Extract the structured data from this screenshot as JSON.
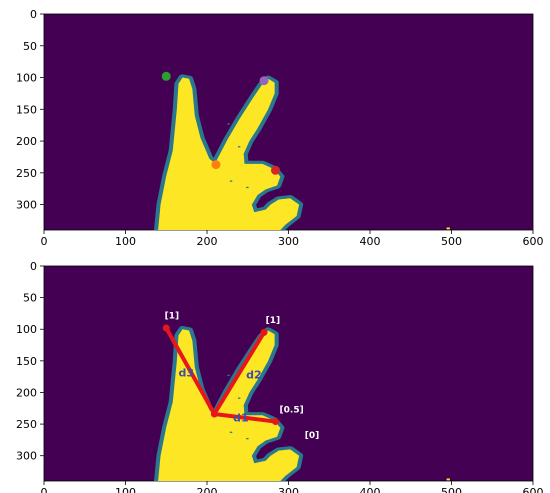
{
  "chart_data": [
    {
      "type": "heatmap",
      "colors": {
        "background": "#440154",
        "fill": "#fde725",
        "edge": "#2a788e"
      },
      "x_ticks": [
        0,
        100,
        200,
        300,
        400,
        500,
        600
      ],
      "y_ticks": [
        0,
        50,
        100,
        150,
        200,
        250,
        300
      ],
      "xlim": [
        0,
        600
      ],
      "ylim": [
        340,
        0
      ],
      "points": [
        {
          "x": 150,
          "y": 98,
          "color": "#2ca02c"
        },
        {
          "x": 270,
          "y": 105,
          "color": "#9467bd"
        },
        {
          "x": 211,
          "y": 237,
          "color": "#ff7f0e"
        },
        {
          "x": 284,
          "y": 246,
          "color": "#d62728"
        }
      ]
    },
    {
      "type": "heatmap",
      "colors": {
        "background": "#440154",
        "fill": "#fde725",
        "edge": "#2a788e",
        "lines": "#e8161b",
        "labels": "#3b4fa8",
        "values": "#ffffff"
      },
      "x_ticks": [
        0,
        100,
        200,
        300,
        400,
        500,
        600
      ],
      "y_ticks": [
        0,
        50,
        100,
        150,
        200,
        250,
        300
      ],
      "xlim": [
        0,
        600
      ],
      "ylim": [
        340,
        0
      ],
      "segments": [
        {
          "name": "d1",
          "x1": 209,
          "y1": 234,
          "x2": 284,
          "y2": 246
        },
        {
          "name": "d2",
          "x1": 209,
          "y1": 234,
          "x2": 270,
          "y2": 105
        },
        {
          "name": "d3",
          "x1": 209,
          "y1": 234,
          "x2": 150,
          "y2": 98
        }
      ],
      "segment_labels": [
        {
          "text": "d1",
          "x": 232,
          "y": 246
        },
        {
          "text": "d2",
          "x": 248,
          "y": 178
        },
        {
          "text": "d3",
          "x": 165,
          "y": 175
        }
      ],
      "value_labels": [
        {
          "text": "[1]",
          "x": 148,
          "y": 83
        },
        {
          "text": "[1]",
          "x": 272,
          "y": 90
        },
        {
          "text": "[0.5]",
          "x": 289,
          "y": 232
        },
        {
          "text": "[0]",
          "x": 320,
          "y": 272
        }
      ]
    }
  ]
}
